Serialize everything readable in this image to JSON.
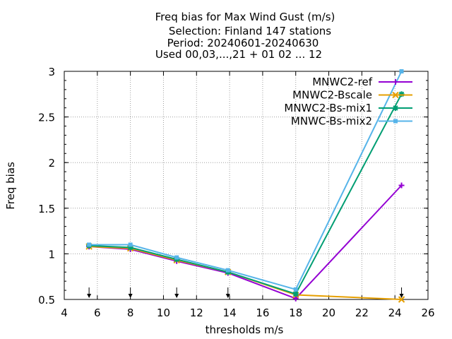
{
  "chart_data": {
    "type": "line",
    "title_lines": [
      "Freq bias  for Max Wind Gust (m/s)",
      "Selection: Finland    147 stations",
      "Period: 20240601-20240630",
      "Used 00,03,...,21 + 01 02 ... 12"
    ],
    "xlabel": "thresholds m/s",
    "ylabel": "Freq bias",
    "xlim": [
      4,
      26
    ],
    "ylim": [
      0.5,
      3
    ],
    "xticks": [
      "4",
      "6",
      "8",
      "10",
      "12",
      "14",
      "16",
      "18",
      "20",
      "22",
      "24",
      "26"
    ],
    "yticks": [
      "0.5",
      "1",
      "1.5",
      "2",
      "2.5",
      "3"
    ],
    "grid": true,
    "legend_position": "top-right",
    "threshold_arrows": [
      5.5,
      8,
      10.8,
      13.9,
      24.4
    ],
    "series": [
      {
        "name": "MNWC2-ref",
        "color": "#9400d3",
        "marker": "plus",
        "x": [
          5.5,
          8,
          10.8,
          13.9,
          18,
          24.4
        ],
        "y": [
          1.08,
          1.05,
          0.92,
          0.79,
          0.51,
          1.75
        ]
      },
      {
        "name": "MNWC2-Bscale",
        "color": "#e69f00",
        "marker": "cross",
        "x": [
          5.5,
          8,
          10.8,
          13.9,
          18,
          24.4
        ],
        "y": [
          1.08,
          1.06,
          0.93,
          0.8,
          0.55,
          0.5
        ]
      },
      {
        "name": "MNWC2-Bs-mix1",
        "color": "#009e73",
        "marker": "star",
        "x": [
          5.5,
          8,
          10.8,
          13.9,
          18,
          24.4
        ],
        "y": [
          1.09,
          1.07,
          0.94,
          0.8,
          0.56,
          2.75
        ]
      },
      {
        "name": "MNWC-Bs-mix2",
        "color": "#56b4e9",
        "marker": "box",
        "x": [
          5.5,
          8,
          10.8,
          13.9,
          18,
          24.4
        ],
        "y": [
          1.1,
          1.1,
          0.96,
          0.82,
          0.61,
          3.0
        ]
      }
    ]
  }
}
